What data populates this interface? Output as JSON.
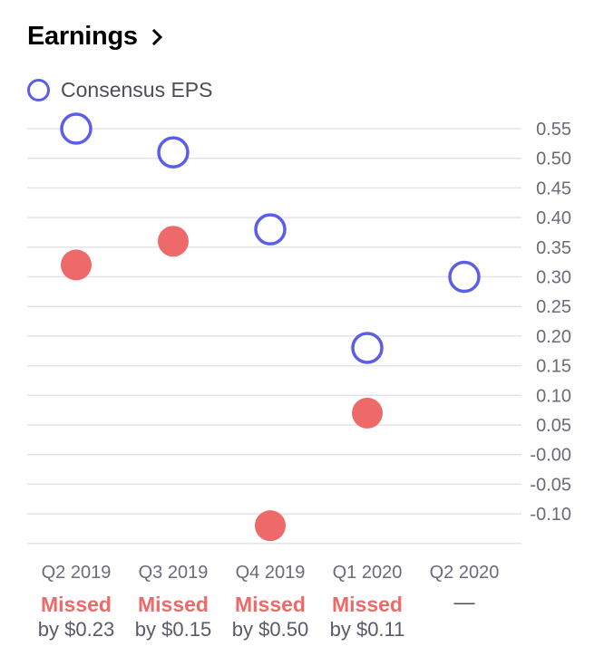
{
  "header": {
    "title": "Earnings",
    "chevron_icon": "chevron-right-icon"
  },
  "legend": {
    "label": "Consensus EPS",
    "color": "#5b5fe8"
  },
  "colors": {
    "consensus": "#5b5fe8",
    "actual": "#ee6a6a",
    "grid": "#e3e3ea",
    "missed": "#ee6a6a"
  },
  "chart_data": {
    "type": "scatter",
    "categories": [
      "Q2 2019",
      "Q3 2019",
      "Q4 2019",
      "Q1 2020",
      "Q2 2020"
    ],
    "series": [
      {
        "name": "Consensus EPS",
        "style": "hollow-circle",
        "values": [
          0.55,
          0.51,
          0.38,
          0.18,
          0.3
        ]
      },
      {
        "style": "filled-circle",
        "values": [
          0.32,
          0.36,
          -0.12,
          0.07,
          null
        ]
      }
    ],
    "yticks": [
      0.55,
      0.5,
      0.45,
      0.4,
      0.35,
      0.3,
      0.25,
      0.2,
      0.15,
      0.1,
      0.05,
      0.0,
      -0.05,
      -0.1
    ],
    "ytick_labels": [
      "0.55",
      "0.50",
      "0.45",
      "0.40",
      "0.35",
      "0.30",
      "0.25",
      "0.20",
      "0.15",
      "0.10",
      "0.05",
      "-0.00",
      "-0.05",
      "-0.10"
    ],
    "ylim": [
      -0.15,
      0.57
    ],
    "grid": true,
    "y_axis_position": "right",
    "legend_position": "top-left"
  },
  "results": [
    {
      "result": "Missed",
      "detail": "by $0.23"
    },
    {
      "result": "Missed",
      "detail": "by $0.15"
    },
    {
      "result": "Missed",
      "detail": "by $0.50"
    },
    {
      "result": "Missed",
      "detail": "by $0.11"
    },
    {
      "result": "—",
      "detail": ""
    }
  ]
}
